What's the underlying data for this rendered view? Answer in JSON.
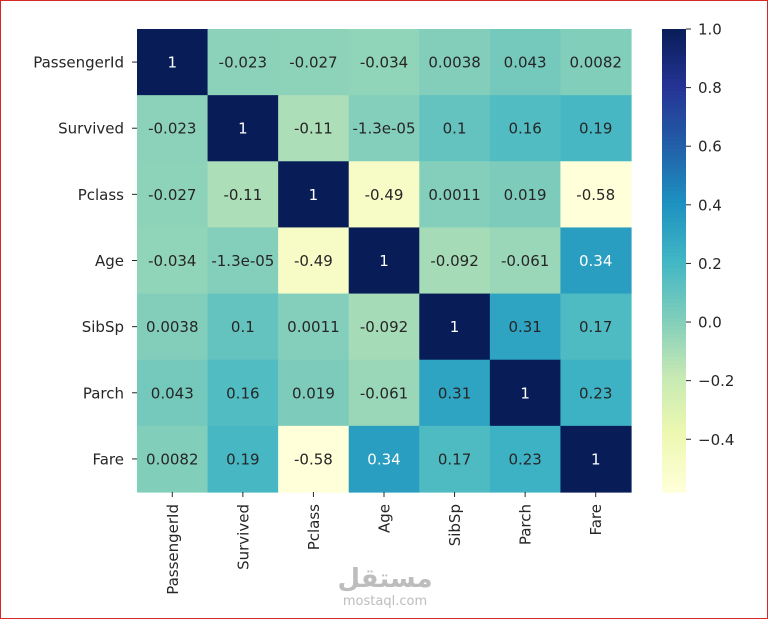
{
  "chart_data": {
    "type": "heatmap",
    "labels": [
      "PassengerId",
      "Survived",
      "Pclass",
      "Age",
      "SibSp",
      "Parch",
      "Fare"
    ],
    "values": [
      [
        1,
        -0.023,
        -0.027,
        -0.034,
        0.0038,
        0.043,
        0.0082
      ],
      [
        -0.023,
        1,
        -0.11,
        -1.3e-05,
        0.1,
        0.16,
        0.19
      ],
      [
        -0.027,
        -0.11,
        1,
        -0.49,
        0.0011,
        0.019,
        -0.58
      ],
      [
        -0.034,
        -1.3e-05,
        -0.49,
        1,
        -0.092,
        -0.061,
        0.34
      ],
      [
        0.0038,
        0.1,
        0.0011,
        -0.092,
        1,
        0.31,
        0.17
      ],
      [
        0.043,
        0.16,
        0.019,
        -0.061,
        0.31,
        1,
        0.23
      ],
      [
        0.0082,
        0.19,
        -0.58,
        0.34,
        0.17,
        0.23,
        1
      ]
    ],
    "annotations": [
      [
        "1",
        "-0.023",
        "-0.027",
        "-0.034",
        "0.0038",
        "0.043",
        "0.0082"
      ],
      [
        "-0.023",
        "1",
        "-0.11",
        "-1.3e-05",
        "0.1",
        "0.16",
        "0.19"
      ],
      [
        "-0.027",
        "-0.11",
        "1",
        "-0.49",
        "0.0011",
        "0.019",
        "-0.58"
      ],
      [
        "-0.034",
        "-1.3e-05",
        "-0.49",
        "1",
        "-0.092",
        "-0.061",
        "0.34"
      ],
      [
        "0.0038",
        "0.1",
        "0.0011",
        "-0.092",
        "1",
        "0.31",
        "0.17"
      ],
      [
        "0.043",
        "0.16",
        "0.019",
        "-0.061",
        "0.31",
        "1",
        "0.23"
      ],
      [
        "0.0082",
        "0.19",
        "-0.58",
        "0.34",
        "0.17",
        "0.23",
        "1"
      ]
    ],
    "colormap": "YlGnBu",
    "vmin": -0.58,
    "vmax": 1.0,
    "colorbar_ticks": [
      1.0,
      0.8,
      0.6,
      0.4,
      0.2,
      0.0,
      -0.2,
      -0.4
    ],
    "colorbar_tick_labels": [
      "1.0",
      "0.8",
      "0.6",
      "0.4",
      "0.2",
      "0.0",
      "−0.2",
      "−0.4"
    ],
    "title": "",
    "xlabel": "",
    "ylabel": ""
  },
  "watermark": {
    "arabic": "مستقل",
    "latin": "mostaql.com"
  },
  "colors": {
    "frame_border": "#d62828",
    "tick_text": "#262626",
    "watermark": "#bdbdbd"
  }
}
